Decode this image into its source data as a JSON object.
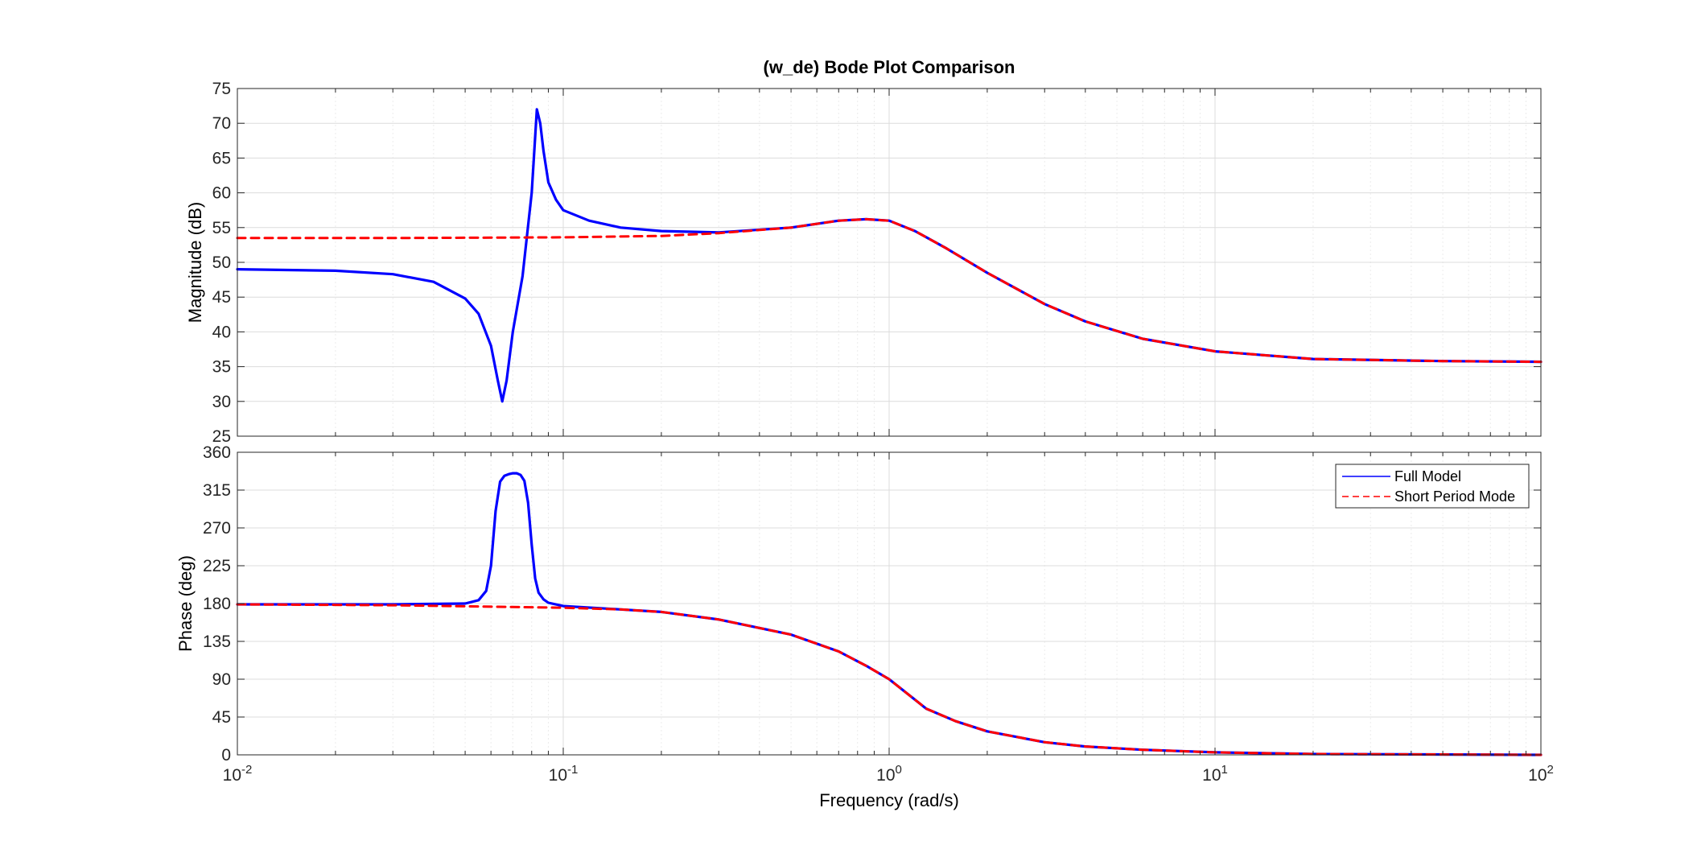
{
  "chart_data": {
    "type": "line",
    "title": "(w_de) Bode Plot Comparison",
    "xlabel": "Frequency  (rad/s)",
    "x_scale": "log",
    "xlim": [
      0.01,
      100
    ],
    "x_ticks": [
      {
        "base": "10",
        "exp": "-2",
        "value": 0.01
      },
      {
        "base": "10",
        "exp": "-1",
        "value": 0.1
      },
      {
        "base": "10",
        "exp": "0",
        "value": 1
      },
      {
        "base": "10",
        "exp": "1",
        "value": 10
      },
      {
        "base": "10",
        "exp": "2",
        "value": 100
      }
    ],
    "grid": true,
    "legend_position": "top-right of phase subplot",
    "series_styles": [
      {
        "name": "Full Model",
        "color": "#0000ff",
        "dash": "solid"
      },
      {
        "name": "Short Period Mode",
        "color": "#ff0000",
        "dash": "dashed"
      }
    ],
    "subplots": [
      {
        "ylabel": "Magnitude (dB)",
        "ylim": [
          25,
          75
        ],
        "y_ticks": [
          "25",
          "30",
          "35",
          "40",
          "45",
          "50",
          "55",
          "60",
          "65",
          "70",
          "75"
        ],
        "series": [
          {
            "name": "Full Model",
            "x": [
              0.01,
              0.02,
              0.03,
              0.04,
              0.05,
              0.055,
              0.06,
              0.063,
              0.065,
              0.067,
              0.07,
              0.075,
              0.08,
              0.083,
              0.085,
              0.087,
              0.09,
              0.095,
              0.1,
              0.12,
              0.15,
              0.2,
              0.3,
              0.5,
              0.7,
              0.85,
              1.0,
              1.2,
              1.5,
              2.0,
              3.0,
              4.0,
              6.0,
              10,
              20,
              50,
              100
            ],
            "y": [
              49,
              48.8,
              48.3,
              47.2,
              44.8,
              42.6,
              38,
              33,
              30,
              33,
              40,
              48,
              60,
              72,
              70,
              66,
              61.5,
              59,
              57.5,
              56,
              55,
              54.5,
              54.3,
              55,
              56,
              56.2,
              56,
              54.5,
              52,
              48.5,
              44,
              41.5,
              39,
              37.2,
              36.1,
              35.8,
              35.7
            ]
          },
          {
            "name": "Short Period Mode",
            "x": [
              0.01,
              0.03,
              0.1,
              0.2,
              0.3,
              0.5,
              0.7,
              0.85,
              1.0,
              1.2,
              1.5,
              2.0,
              3.0,
              4.0,
              6.0,
              10,
              20,
              50,
              100
            ],
            "y": [
              53.5,
              53.5,
              53.6,
              53.8,
              54.2,
              55,
              56,
              56.2,
              56,
              54.5,
              52,
              48.5,
              44,
              41.5,
              39,
              37.2,
              36.1,
              35.8,
              35.7
            ]
          }
        ]
      },
      {
        "ylabel": "Phase (deg)",
        "ylim": [
          0,
          360
        ],
        "y_ticks": [
          "0",
          "45",
          "90",
          "135",
          "180",
          "225",
          "270",
          "315",
          "360"
        ],
        "series": [
          {
            "name": "Full Model",
            "x": [
              0.01,
              0.03,
              0.05,
              0.055,
              0.058,
              0.06,
              0.062,
              0.064,
              0.066,
              0.068,
              0.07,
              0.072,
              0.074,
              0.076,
              0.078,
              0.08,
              0.082,
              0.084,
              0.087,
              0.09,
              0.1,
              0.15,
              0.2,
              0.3,
              0.5,
              0.7,
              0.85,
              1.0,
              1.3,
              1.6,
              2.0,
              3.0,
              4.0,
              6.0,
              10,
              20,
              100
            ],
            "y": [
              179,
              179,
              180,
              184,
              195,
              225,
              290,
              325,
              332,
              334,
              335,
              335,
              333,
              326,
              300,
              250,
              210,
              193,
              185,
              181,
              177,
              173,
              170,
              161,
              143,
              123,
              106,
              90,
              55,
              40,
              28,
              15,
              10,
              6,
              3,
              1,
              0
            ]
          },
          {
            "name": "Short Period Mode",
            "x": [
              0.01,
              0.03,
              0.1,
              0.15,
              0.2,
              0.3,
              0.5,
              0.7,
              0.85,
              1.0,
              1.3,
              1.6,
              2.0,
              3.0,
              4.0,
              6.0,
              10,
              20,
              100
            ],
            "y": [
              179,
              178,
              175,
              173,
              170,
              161,
              143,
              123,
              106,
              90,
              55,
              40,
              28,
              15,
              10,
              6,
              3,
              1,
              0
            ]
          }
        ]
      }
    ]
  }
}
